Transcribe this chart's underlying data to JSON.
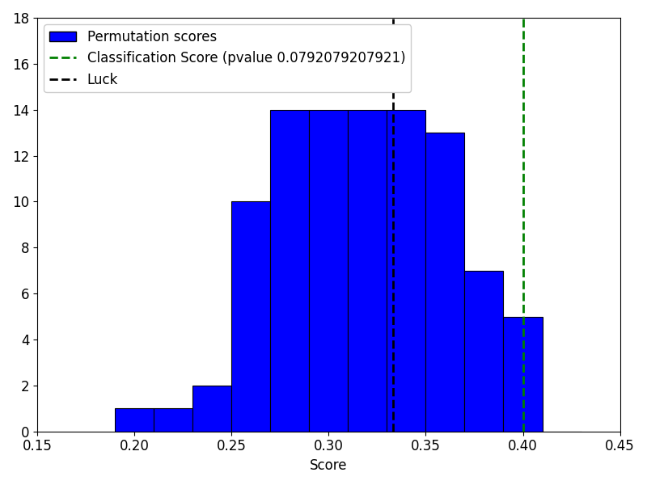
{
  "xlabel": "Score",
  "xlim": [
    0.15,
    0.45
  ],
  "ylim": [
    0,
    18
  ],
  "bar_bins": [
    0.19,
    0.21,
    0.23,
    0.25,
    0.27,
    0.29,
    0.31,
    0.33,
    0.35,
    0.37,
    0.39,
    0.41,
    0.43
  ],
  "bar_heights": [
    1,
    1,
    2,
    10,
    14,
    14,
    14,
    14,
    13,
    7,
    5,
    0
  ],
  "bar_color": "#0000ff",
  "bar_edgecolor": "#000000",
  "classification_score": 0.4,
  "pvalue": "0.0792079207921",
  "luck_score": 0.3333333333333333,
  "vline_classification_color": "#008000",
  "vline_luck_color": "#000000",
  "legend_fontsize": 12,
  "tick_labelsize": 12,
  "yticks": [
    0,
    2,
    4,
    6,
    8,
    10,
    12,
    14,
    16,
    18
  ],
  "xticks": [
    0.15,
    0.2,
    0.25,
    0.3,
    0.35,
    0.4,
    0.45
  ],
  "figsize": [
    8.0,
    6.0
  ],
  "dpi": 100,
  "show_title": false
}
